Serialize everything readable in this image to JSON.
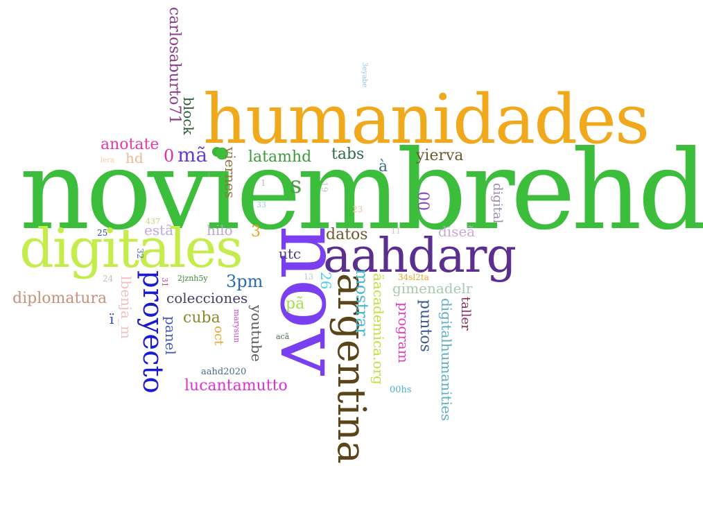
{
  "words": [
    {
      "text": "noviembrehd",
      "color": "#3cbd3c"
    },
    {
      "text": "humanidades",
      "color": "#f0a81c"
    },
    {
      "text": "nov",
      "color": "#7a3ff0"
    },
    {
      "text": "digitales",
      "color": "#c4ec4a"
    },
    {
      "text": "aahdarg",
      "color": "#5b2f8f"
    },
    {
      "text": "argentina",
      "color": "#5a4418"
    },
    {
      "text": "proyecto",
      "color": "#1a1ad0"
    },
    {
      "text": "carlosaburto71",
      "color": "#8a3a8a"
    },
    {
      "text": "block",
      "color": "#2f5a3a"
    },
    {
      "text": "anotate",
      "color": "#e23aa8"
    },
    {
      "text": "hd",
      "color": "#f0b890"
    },
    {
      "text": "lera",
      "color": "#f4c8a0"
    },
    {
      "text": "0",
      "color": "#e0309a"
    },
    {
      "text": "mã",
      "color": "#6a3ad0"
    },
    {
      "text": "viernes",
      "color": "#8a7a3a"
    },
    {
      "text": "latamhd",
      "color": "#3a9a3a"
    },
    {
      "text": "tabs",
      "color": "#2f6a4a"
    },
    {
      "text": "yierva",
      "color": "#6a5a2a"
    },
    {
      "text": "3eyabe",
      "color": "#8ac8e8"
    },
    {
      "text": "s",
      "color": "#4aa040"
    },
    {
      "text": "à",
      "color": "#3a6a8a"
    },
    {
      "text": "1",
      "color": "#bbbbbb"
    },
    {
      "text": "19",
      "color": "#c0c0c0"
    },
    {
      "text": "digital",
      "color": "#9a8ab0"
    },
    {
      "text": "00",
      "color": "#8a4ac0"
    },
    {
      "text": "23",
      "color": "#f0b8a0"
    },
    {
      "text": "33",
      "color": "#8ad0e8"
    },
    {
      "text": "437",
      "color": "#c8d080"
    },
    {
      "text": "estã",
      "color": "#c0a8e0"
    },
    {
      "text": "hilo",
      "color": "#b8a8d0"
    },
    {
      "text": "3",
      "color": "#f0a020"
    },
    {
      "text": "datos",
      "color": "#6a5a2a"
    },
    {
      "text": "11",
      "color": "#c8c8c8"
    },
    {
      "text": "diseã",
      "color": "#c8a8d8"
    },
    {
      "text": "25",
      "color": "#2a4ab0"
    },
    {
      "text": "32",
      "color": "#4a6ad0"
    },
    {
      "text": "utc",
      "color": "#4a3a8a"
    },
    {
      "text": "24",
      "color": "#c0c0c0"
    },
    {
      "text": "31",
      "color": "#c03a8a"
    },
    {
      "text": "2jznh5y",
      "color": "#3a8a3a"
    },
    {
      "text": "3pm",
      "color": "#2a6ab0"
    },
    {
      "text": "13",
      "color": "#b0c8d0"
    },
    {
      "text": "26",
      "color": "#4ad0e0"
    },
    {
      "text": "mostrar",
      "color": "#4ab8d0"
    },
    {
      "text": "äacademica.org",
      "color": "#c0e040"
    },
    {
      "text": "34sl2ta",
      "color": "#e8a830"
    },
    {
      "text": "gimenadelr",
      "color": "#a8c8b0"
    },
    {
      "text": "diplomatura",
      "color": "#c8907a"
    },
    {
      "text": "lbenja_m",
      "color": "#f0c0c0"
    },
    {
      "text": "colecciones",
      "color": "#4a3a6a"
    },
    {
      "text": "pã",
      "color": "#a0e040"
    },
    {
      "text": "program",
      "color": "#e040c0"
    },
    {
      "text": "puntos",
      "color": "#3a5a8a"
    },
    {
      "text": "digitalhumanities",
      "color": "#5ab0c0"
    },
    {
      "text": "taller",
      "color": "#8a2a5a"
    },
    {
      "text": "ï",
      "color": "#2a4ab0"
    },
    {
      "text": "panel",
      "color": "#4a5ab0"
    },
    {
      "text": "cuba",
      "color": "#8a8a2a"
    },
    {
      "text": "marysun",
      "color": "#d040d0"
    },
    {
      "text": "oct",
      "color": "#f0a030"
    },
    {
      "text": "youtube",
      "color": "#5a5a5a"
    },
    {
      "text": "acã",
      "color": "#4a6a4a"
    },
    {
      "text": "aahd2020",
      "color": "#4a6a8a"
    },
    {
      "text": "00hs",
      "color": "#4ab0d0"
    },
    {
      "text": "lucantamutto",
      "color": "#e030d0"
    }
  ]
}
